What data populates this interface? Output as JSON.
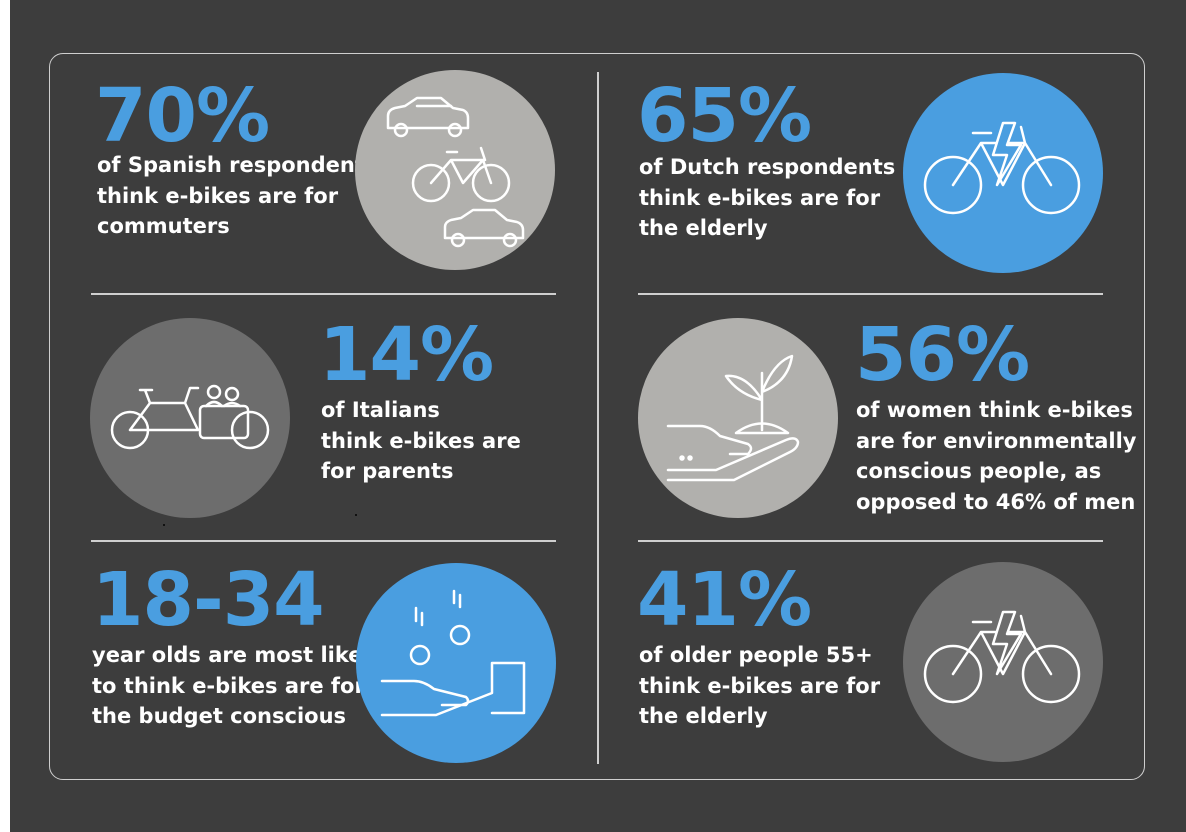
{
  "stats": [
    {
      "value": "70%",
      "lines": [
        "of Spanish respondents",
        "think e-bikes are for",
        "commuters"
      ],
      "icon": "car-and-bike-icon"
    },
    {
      "value": "65%",
      "lines": [
        "of Dutch respondents",
        "think e-bikes are for",
        "the elderly"
      ],
      "icon": "electric-bike-icon"
    },
    {
      "value": "14%",
      "lines": [
        "of Italians",
        "think e-bikes are",
        "for parents"
      ],
      "icon": "cargo-bike-icon"
    },
    {
      "value": "56%",
      "lines": [
        "of women think e-bikes",
        "are for environmentally",
        "conscious people, as",
        "opposed to 46% of men"
      ],
      "icon": "hand-plant-icon"
    },
    {
      "value": "18-34",
      "lines": [
        "year olds are most likely",
        "to think e-bikes are for",
        "the budget conscious"
      ],
      "icon": "hand-coins-icon"
    },
    {
      "value": "41%",
      "lines": [
        "of older people 55+",
        "think e-bikes are for",
        "the elderly"
      ],
      "icon": "electric-bike-icon"
    }
  ],
  "colors": {
    "background": "#3d3d3d",
    "accent": "#4a9ee0",
    "circle_light_grey": "#b1b0ad",
    "circle_dark_grey": "#6d6d6d",
    "circle_blue": "#4a9ee0",
    "text": "#ffffff"
  }
}
